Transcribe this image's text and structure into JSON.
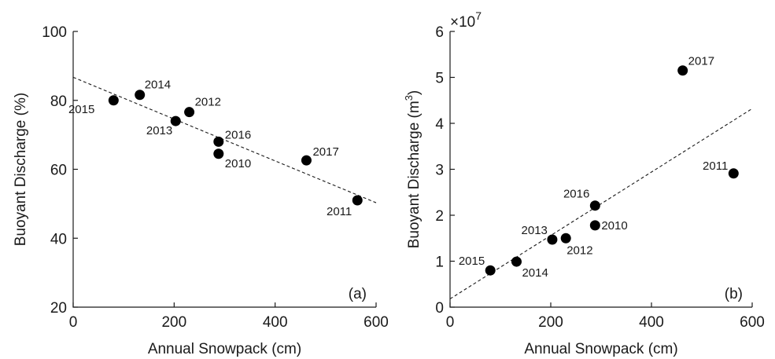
{
  "chart_data": [
    {
      "type": "scatter",
      "panel_label": "(a)",
      "xlabel": "Annual Snowpack (cm)",
      "ylabel": "Buoyant Discharge (%)",
      "xlim": [
        0,
        600
      ],
      "ylim": [
        20,
        100
      ],
      "xticks": [
        0,
        200,
        400,
        600
      ],
      "yticks": [
        20,
        40,
        60,
        80,
        100
      ],
      "grid": false,
      "trendline": {
        "style": "dashed",
        "x": [
          0,
          600
        ],
        "y": [
          86.7,
          50.3
        ]
      },
      "points": [
        {
          "label": "2015",
          "x": 80,
          "y": 80.0
        },
        {
          "label": "2014",
          "x": 132,
          "y": 81.6
        },
        {
          "label": "2013",
          "x": 203,
          "y": 74.0
        },
        {
          "label": "2012",
          "x": 230,
          "y": 76.6
        },
        {
          "label": "2016",
          "x": 288,
          "y": 68.0
        },
        {
          "label": "2010",
          "x": 288,
          "y": 64.5
        },
        {
          "label": "2017",
          "x": 462,
          "y": 62.6
        },
        {
          "label": "2011",
          "x": 563,
          "y": 51.0
        }
      ]
    },
    {
      "type": "scatter",
      "panel_label": "(b)",
      "xlabel": "Annual Snowpack (cm)",
      "ylabel": "Buoyant Discharge (m",
      "ylabel_sup": "3",
      "ylabel_close": ")",
      "y_multiplier": "×10",
      "y_multiplier_exp": "7",
      "xlim": [
        0,
        600
      ],
      "ylim": [
        0,
        6
      ],
      "xticks": [
        0,
        200,
        400,
        600
      ],
      "yticks": [
        0,
        1,
        2,
        3,
        4,
        5,
        6
      ],
      "grid": false,
      "trendline": {
        "style": "dashed",
        "x": [
          0,
          600
        ],
        "y": [
          0.18,
          4.32
        ]
      },
      "points": [
        {
          "label": "2015",
          "x": 80,
          "y": 0.8
        },
        {
          "label": "2014",
          "x": 132,
          "y": 0.99
        },
        {
          "label": "2013",
          "x": 203,
          "y": 1.47
        },
        {
          "label": "2012",
          "x": 230,
          "y": 1.5
        },
        {
          "label": "2016",
          "x": 288,
          "y": 2.21
        },
        {
          "label": "2010",
          "x": 288,
          "y": 1.78
        },
        {
          "label": "2017",
          "x": 462,
          "y": 5.15
        },
        {
          "label": "2011",
          "x": 563,
          "y": 2.91
        }
      ]
    }
  ]
}
